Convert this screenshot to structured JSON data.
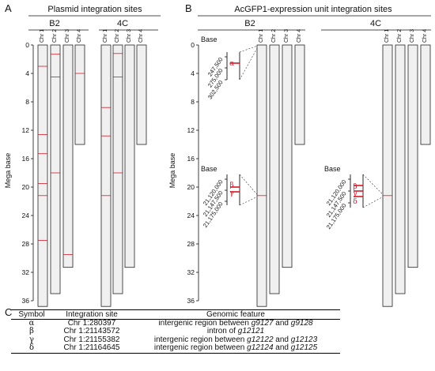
{
  "panels": {
    "a": {
      "letter": "A",
      "title": "Plasmid integration sites"
    },
    "b": {
      "letter": "B",
      "title": "AcGFP1-expression unit integration sites"
    },
    "c": {
      "letter": "C"
    }
  },
  "groups": [
    "B2",
    "4C"
  ],
  "chromosomes": [
    "Chr 1",
    "Chr 2",
    "Chr 3",
    "Chr 4"
  ],
  "y_axis": {
    "label": "Mega base",
    "min": 0,
    "max": 36,
    "ticks": [
      "0",
      "4",
      "8",
      "12",
      "16",
      "20",
      "24",
      "28",
      "32",
      "36"
    ]
  },
  "chart_data": {
    "type": "diagram",
    "chromosome_lengths_mb": [
      36.8,
      35.0,
      31.3,
      14.0
    ],
    "panel_a_sites_mb": {
      "B2": {
        "Chr 1": [
          3.0,
          12.6,
          15.3,
          19.5,
          21.2,
          27.5
        ],
        "Chr 2": [
          1.3,
          4.5,
          18.0
        ],
        "Chr 3": [
          29.5
        ],
        "Chr 4": [
          4.0
        ]
      },
      "4C": {
        "Chr 1": [
          8.8,
          12.8,
          21.2
        ],
        "Chr 2": [
          1.2,
          4.5,
          18.0
        ],
        "Chr 3": [],
        "Chr 4": []
      }
    },
    "panel_b_sites_mb": {
      "B2": {
        "Chr 1": [
          21.2
        ]
      },
      "4C": {
        "Chr 1": [
          21.2
        ]
      }
    }
  },
  "zooms": {
    "base_label": "Base",
    "upper": {
      "ticks": [
        "247,500",
        "275,000",
        "302,500"
      ],
      "markers": [
        "α"
      ]
    },
    "lower": {
      "ticks": [
        "21,120,000",
        "21,147,500",
        "21,175,000"
      ],
      "markers_b2": [
        "β",
        "γ"
      ],
      "markers_4c": [
        "β",
        "γ",
        "δ"
      ]
    }
  },
  "table": {
    "headers": [
      "Symbol",
      "Integration site",
      "Genomic feature"
    ],
    "rows": [
      {
        "symbol": "α",
        "site": "Chr 1:280397",
        "pre": "intergenic region between ",
        "g1": "g9127",
        "mid": " and ",
        "g2": "g9128"
      },
      {
        "symbol": "β",
        "site": "Chr 1:21143572",
        "pre": "intron of ",
        "g1": "g12121",
        "mid": "",
        "g2": ""
      },
      {
        "symbol": "γ",
        "site": "Chr 1:21155382",
        "pre": "intergenic region between ",
        "g1": "g12122",
        "mid": " and ",
        "g2": "g12123"
      },
      {
        "symbol": "δ",
        "site": "Chr 1:21164645",
        "pre": "intergenic region between ",
        "g1": "g12124",
        "mid": " and ",
        "g2": "g12125"
      }
    ]
  },
  "colors": {
    "site": "#d11a2a",
    "chromosome_fill": "#f0f0f0",
    "outline": "#222222"
  }
}
